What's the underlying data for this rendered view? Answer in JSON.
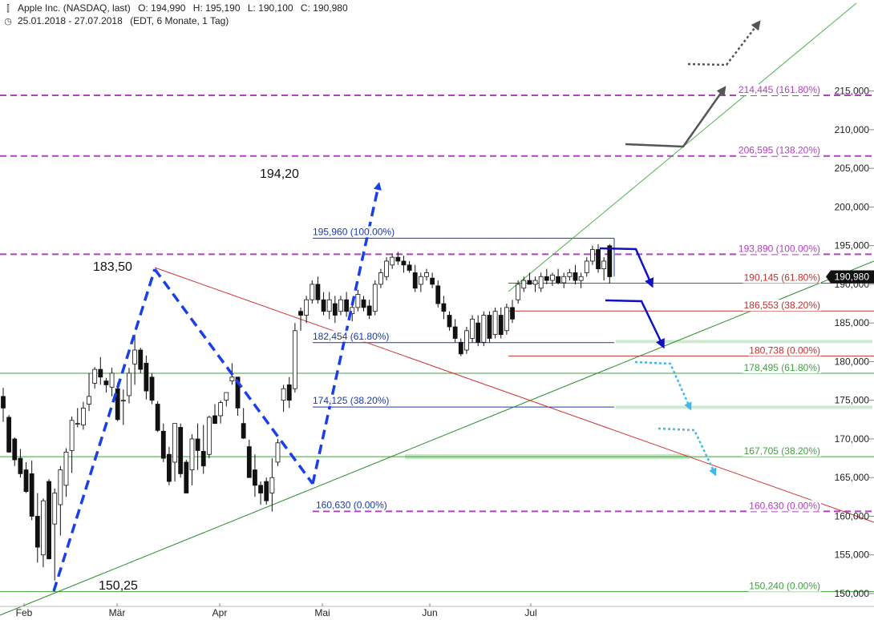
{
  "header": {
    "symbol_icon": "bar-chart-icon",
    "symbol": "Apple Inc. (NASDAQ, last)",
    "open": "O: 194,990",
    "high": "H: 195,190",
    "low": "L: 190,100",
    "close": "C: 190,980",
    "clock_icon": "clock-icon",
    "range": "25.01.2018 - 27.07.2018",
    "settings": "(EDT, 6 Monate, 1 Tag)"
  },
  "chart_data": {
    "type": "candlestick",
    "x_ticks": [
      "Feb",
      "Mär",
      "Apr",
      "Mai",
      "Jun",
      "Jul"
    ],
    "y_ticks": [
      "215,000",
      "210,000",
      "205,000",
      "200,000",
      "195,000",
      "190,000",
      "185,000",
      "180,000",
      "175,000",
      "170,000",
      "165,000",
      "160,000",
      "155,000",
      "150,000"
    ],
    "ylim": [
      150,
      215
    ],
    "last_price": "190,980",
    "price_annotations": [
      "194,20",
      "183,50",
      "150,25"
    ],
    "fib_levels": [
      {
        "label": "214,445 (161.80%)",
        "value": 214.445,
        "color": "#b040c0",
        "style": "dashed"
      },
      {
        "label": "206,595 (138.20%)",
        "value": 206.595,
        "color": "#b040c0",
        "style": "dashed"
      },
      {
        "label": "193,890 (100.00%)",
        "value": 193.89,
        "color": "#b040c0",
        "style": "dashed"
      },
      {
        "label": "190,145 (61.80%)",
        "value": 190.145,
        "color": "#c03030",
        "style": "solid"
      },
      {
        "label": "186,553 (38.20%)",
        "value": 186.553,
        "color": "#c03030",
        "style": "solid"
      },
      {
        "label": "180,738 (0.00%)",
        "value": 180.738,
        "color": "#c03030",
        "style": "solid"
      },
      {
        "label": "178,495 (61.80%)",
        "value": 178.495,
        "color": "#40a040",
        "style": "solid"
      },
      {
        "label": "167,705 (38.20%)",
        "value": 167.705,
        "color": "#40a040",
        "style": "solid"
      },
      {
        "label": "160,630 (0.00%)",
        "value": 160.63,
        "color": "#b040c0",
        "style": "dashed"
      },
      {
        "label": "150,240 (0.00%)",
        "value": 150.24,
        "color": "#40a040",
        "style": "solid"
      }
    ],
    "blue_fib_levels": [
      {
        "label": "195,960 (100.00%)",
        "value": 195.96
      },
      {
        "label": "182,454 (61.80%)",
        "value": 182.454
      },
      {
        "label": "174,125 (38.20%)",
        "value": 174.125
      },
      {
        "label": "160,630 (0.00%)",
        "value": 160.63
      }
    ],
    "candles": [
      [
        175.5,
        176.6,
        172.2,
        174.0
      ],
      [
        172.8,
        173.1,
        168.2,
        168.3
      ],
      [
        170.0,
        170.2,
        166.5,
        167.3
      ],
      [
        167.5,
        168.7,
        165.0,
        165.5
      ],
      [
        166.0,
        167.0,
        163.0,
        163.2
      ],
      [
        165.5,
        167.2,
        159.5,
        160.0
      ],
      [
        160.0,
        163.0,
        154.0,
        156.0
      ],
      [
        155.0,
        162.3,
        153.4,
        162.0
      ],
      [
        164.5,
        164.8,
        154.4,
        154.5
      ],
      [
        159.0,
        163.6,
        151.7,
        163.0
      ],
      [
        161.5,
        166.5,
        157.5,
        166.0
      ],
      [
        164.0,
        168.8,
        162.5,
        168.3
      ],
      [
        168.5,
        172.9,
        165.6,
        172.4
      ],
      [
        172.0,
        174.0,
        171.5,
        172.0
      ],
      [
        171.8,
        174.8,
        171.2,
        174.0
      ],
      [
        174.5,
        178.5,
        173.6,
        175.5
      ],
      [
        177.2,
        179.3,
        176.5,
        179.0
      ],
      [
        179.0,
        180.6,
        177.0,
        178.0
      ],
      [
        177.5,
        177.9,
        176.0,
        177.0
      ],
      [
        176.7,
        179.2,
        175.5,
        178.5
      ],
      [
        176.5,
        177.3,
        172.3,
        172.5
      ],
      [
        175.0,
        176.4,
        171.8,
        175.0
      ],
      [
        175.6,
        179.2,
        174.6,
        178.5
      ],
      [
        179.7,
        183.5,
        177.0,
        181.5
      ],
      [
        181.5,
        181.8,
        178.5,
        179.0
      ],
      [
        179.8,
        180.8,
        175.1,
        176.2
      ],
      [
        178.0,
        178.5,
        174.5,
        175.0
      ],
      [
        174.5,
        174.9,
        170.9,
        171.1
      ],
      [
        171.0,
        172.0,
        167.0,
        167.5
      ],
      [
        168.0,
        169.0,
        164.0,
        164.5
      ],
      [
        167.0,
        172.0,
        164.5,
        172.0
      ],
      [
        171.5,
        172.0,
        165.0,
        165.5
      ],
      [
        167.0,
        167.3,
        163.0,
        163.0
      ],
      [
        166.0,
        170.6,
        164.0,
        170.0
      ],
      [
        170.0,
        172.0,
        166.0,
        168.5
      ],
      [
        168.4,
        171.8,
        165.5,
        166.5
      ],
      [
        168.0,
        173.0,
        167.5,
        172.8
      ],
      [
        173.0,
        174.5,
        172.0,
        172.0
      ],
      [
        173.0,
        175.0,
        172.0,
        174.7
      ],
      [
        175.0,
        176.0,
        174.2,
        176.0
      ],
      [
        177.5,
        179.8,
        177.0,
        178.0
      ],
      [
        178.0,
        178.0,
        173.0,
        174.0
      ],
      [
        172.0,
        174.0,
        170.0,
        170.1
      ],
      [
        169.0,
        169.9,
        165.0,
        165.0
      ],
      [
        166.0,
        168.0,
        162.5,
        164.0
      ],
      [
        164.0,
        164.5,
        161.5,
        163.0
      ],
      [
        164.5,
        165.0,
        161.5,
        162.0
      ],
      [
        163.0,
        167.5,
        160.6,
        165.0
      ],
      [
        167.0,
        170.0,
        166.5,
        169.5
      ],
      [
        175.0,
        177.0,
        173.5,
        176.5
      ],
      [
        177.0,
        178.0,
        174.0,
        175.0
      ],
      [
        176.5,
        185.0,
        176.0,
        184.0
      ],
      [
        186.5,
        187.0,
        184.0,
        186.0
      ],
      [
        186.0,
        188.5,
        185.0,
        188.0
      ],
      [
        188.0,
        190.5,
        187.5,
        190.0
      ],
      [
        190.0,
        191.0,
        187.5,
        188.0
      ],
      [
        188.0,
        189.0,
        186.0,
        186.5
      ],
      [
        186.5,
        189.0,
        185.5,
        188.0
      ],
      [
        187.5,
        188.5,
        185.0,
        186.0
      ],
      [
        186.5,
        188.5,
        186.0,
        188.0
      ],
      [
        188.0,
        189.0,
        185.8,
        186.5
      ],
      [
        186.2,
        187.5,
        185.2,
        187.0
      ],
      [
        187.0,
        189.3,
        186.5,
        188.7
      ],
      [
        188.0,
        188.5,
        186.5,
        187.0
      ],
      [
        187.2,
        188.0,
        185.5,
        186.0
      ],
      [
        186.5,
        190.5,
        186.0,
        190.0
      ],
      [
        190.0,
        192.0,
        189.5,
        191.5
      ],
      [
        191.0,
        193.5,
        190.5,
        193.0
      ],
      [
        192.5,
        194.0,
        192.0,
        193.5
      ],
      [
        193.5,
        194.2,
        192.5,
        193.0
      ],
      [
        193.0,
        193.7,
        191.5,
        192.5
      ],
      [
        192.5,
        193.0,
        191.5,
        191.8
      ],
      [
        191.5,
        192.5,
        189.0,
        189.5
      ],
      [
        190.0,
        191.5,
        189.0,
        191.0
      ],
      [
        191.0,
        192.0,
        190.5,
        191.5
      ],
      [
        190.8,
        191.5,
        189.5,
        190.0
      ],
      [
        189.8,
        190.5,
        187.0,
        187.5
      ],
      [
        187.5,
        188.5,
        185.5,
        186.5
      ],
      [
        186.0,
        186.5,
        184.0,
        184.5
      ],
      [
        184.5,
        185.5,
        182.5,
        183.0
      ],
      [
        182.5,
        183.0,
        180.7,
        181.0
      ],
      [
        181.5,
        184.5,
        181.0,
        184.0
      ],
      [
        183.0,
        186.0,
        182.5,
        185.5
      ],
      [
        185.0,
        186.0,
        182.0,
        182.5
      ],
      [
        182.5,
        186.5,
        182.0,
        186.0
      ],
      [
        186.0,
        186.5,
        182.5,
        183.0
      ],
      [
        183.5,
        187.0,
        183.0,
        186.5
      ],
      [
        186.0,
        187.0,
        183.0,
        183.5
      ],
      [
        184.0,
        187.5,
        183.5,
        187.0
      ],
      [
        187.0,
        188.0,
        185.0,
        185.5
      ],
      [
        188.0,
        190.5,
        187.5,
        190.0
      ],
      [
        189.5,
        191.0,
        189.0,
        190.5
      ],
      [
        190.5,
        191.5,
        190.0,
        190.0
      ],
      [
        190.0,
        191.0,
        189.0,
        190.5
      ],
      [
        189.5,
        191.5,
        189.0,
        191.0
      ],
      [
        191.0,
        192.0,
        190.0,
        190.5
      ],
      [
        190.5,
        191.5,
        189.8,
        191.2
      ],
      [
        191.0,
        192.0,
        190.0,
        190.2
      ],
      [
        190.2,
        191.5,
        189.5,
        191.0
      ],
      [
        191.0,
        192.0,
        190.5,
        191.5
      ],
      [
        191.5,
        192.5,
        190.0,
        190.5
      ],
      [
        190.5,
        191.5,
        189.5,
        191.0
      ],
      [
        191.5,
        193.5,
        191.0,
        193.0
      ],
      [
        193.0,
        195.0,
        192.5,
        194.5
      ],
      [
        194.5,
        195.2,
        191.5,
        192.0
      ],
      [
        192.0,
        193.5,
        190.5,
        193.0
      ],
      [
        194.99,
        195.19,
        190.1,
        190.98
      ]
    ]
  }
}
